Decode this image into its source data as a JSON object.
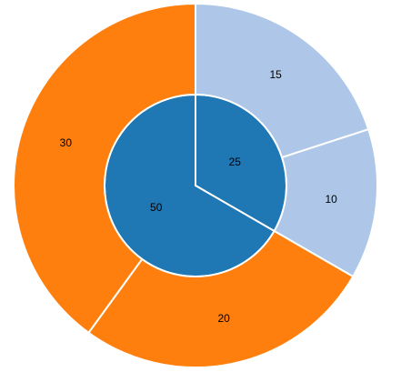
{
  "chart_data": {
    "type": "sunburst",
    "rings": [
      {
        "values": [
          25,
          50
        ],
        "colors": [
          "#1f77b4",
          "#1f77b4"
        ]
      },
      {
        "values": [
          15,
          10,
          20,
          30
        ],
        "colors": [
          "#aec7e8",
          "#aec7e8",
          "#ff7f0e",
          "#ff7f0e"
        ]
      }
    ]
  }
}
